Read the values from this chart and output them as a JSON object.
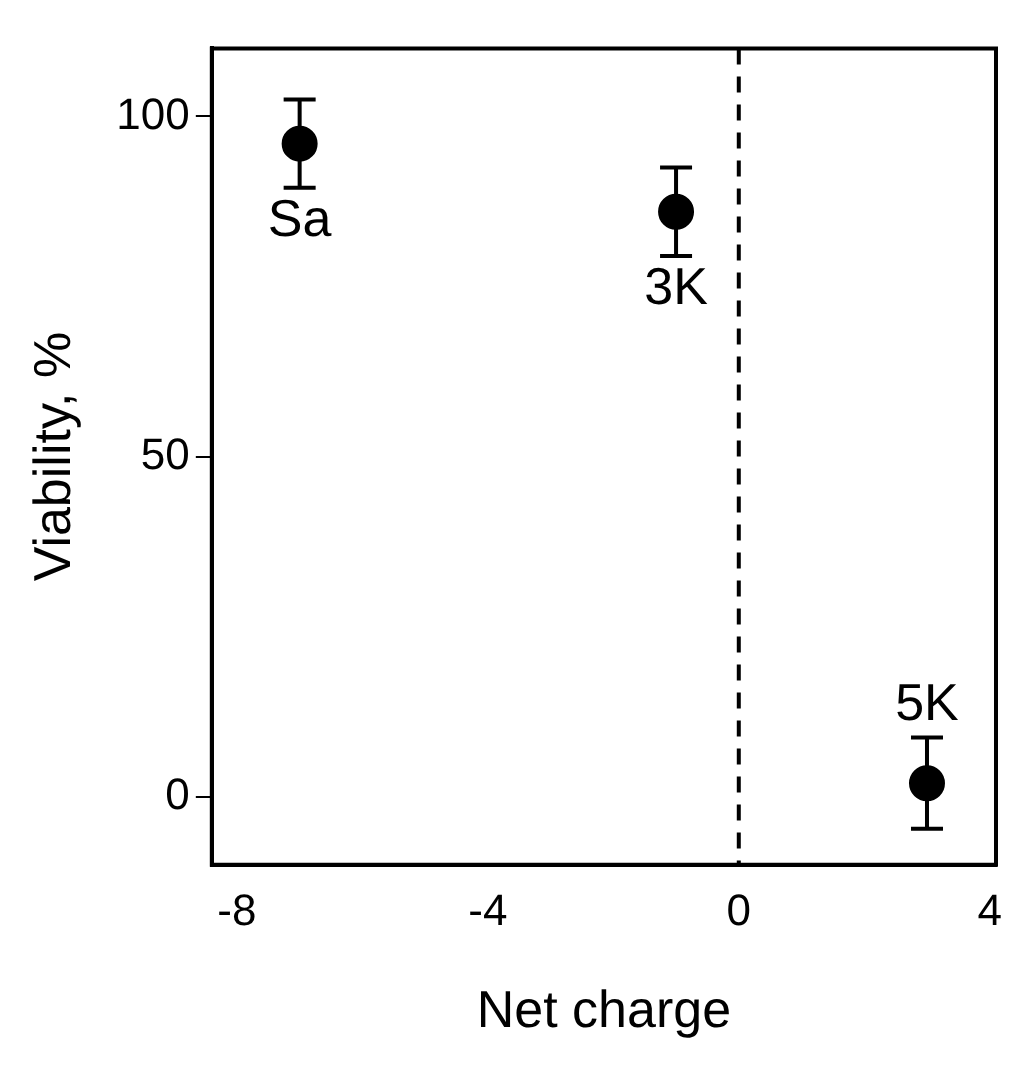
{
  "chart_data": {
    "type": "scatter",
    "xlabel": "Net charge",
    "ylabel": "Viability, %",
    "series": [
      {
        "color": "#000000",
        "x": [
          -7,
          -1,
          3
        ],
        "values": [
          96,
          86,
          2
        ],
        "errors": [
          6.5,
          6.5,
          6.7
        ]
      }
    ],
    "xlim": [
      -8.4,
      4.1
    ],
    "xticks": [
      -8,
      -4,
      0,
      4
    ],
    "ylim": [
      -10,
      110
    ],
    "yticks": [
      0,
      50,
      100
    ],
    "grid": false,
    "legend": false,
    "marker": "circle",
    "ref_lines": [
      {
        "axis": "x",
        "value": 0,
        "line_style": "dashed",
        "color": "#000000"
      }
    ],
    "annotations": [
      {
        "text": "Sa",
        "x": -7,
        "y": 96
      },
      {
        "text": "3K",
        "x": -1,
        "y": 86
      },
      {
        "text": "5K",
        "x": 3,
        "y": 2
      }
    ]
  }
}
